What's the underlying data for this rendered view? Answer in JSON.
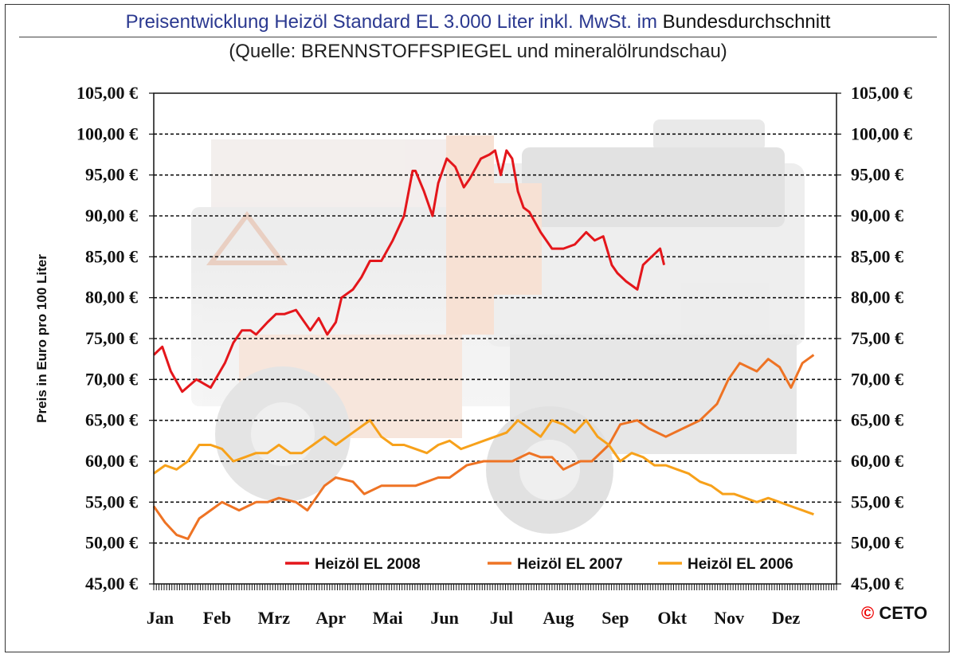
{
  "header": {
    "title_part1": "Preisentwicklung Heizöl Standard EL 3.000 Liter inkl. MwSt. im",
    "title_part2": "Bundesdurchschnitt",
    "subtitle": "(Quelle: BRENNSTOFFSPIEGEL und mineralölrundschau)"
  },
  "logo": {
    "symbol": "©",
    "text": "CETO"
  },
  "colors": {
    "2008": "#e4161b",
    "2007": "#ee7324",
    "2006": "#f7a11a",
    "title": "#2b3990"
  },
  "chart_data": {
    "type": "line",
    "title": "Preisentwicklung Heizöl Standard EL 3.000 Liter inkl. MwSt. im Bundesdurchschnitt",
    "subtitle": "(Quelle: BRENNSTOFFSPIEGEL und mineralölrundschau)",
    "ylabel": "Preis in Euro pro 100 Liter",
    "xlabel": "",
    "ylim": [
      45,
      105
    ],
    "yticks": [
      "45,00 €",
      "50,00 €",
      "55,00 €",
      "60,00 €",
      "65,00 €",
      "70,00 €",
      "75,00 €",
      "80,00 €",
      "85,00 €",
      "90,00 €",
      "95,00 €",
      "100,00 €",
      "105,00 €"
    ],
    "tick_values": [
      45,
      50,
      55,
      60,
      65,
      70,
      75,
      80,
      85,
      90,
      95,
      100,
      105
    ],
    "categories": [
      "Jan",
      "Feb",
      "Mrz",
      "Apr",
      "Mai",
      "Jun",
      "Jul",
      "Aug",
      "Sep",
      "Okt",
      "Nov",
      "Dez"
    ],
    "x_unit": "month (1 = start of Jan, 13 = end of Dez)",
    "grid": true,
    "legend_position": "bottom",
    "series": [
      {
        "name": "Heizöl EL 2008",
        "x": [
          1.0,
          1.15,
          1.3,
          1.5,
          1.75,
          2.0,
          2.25,
          2.4,
          2.55,
          2.7,
          2.8,
          3.0,
          3.15,
          3.3,
          3.5,
          3.75,
          3.9,
          4.05,
          4.2,
          4.3,
          4.5,
          4.65,
          4.8,
          5.0,
          5.2,
          5.4,
          5.55,
          5.6,
          5.75,
          5.9,
          6.0,
          6.15,
          6.3,
          6.45,
          6.55,
          6.75,
          6.9,
          7.0,
          7.1,
          7.2,
          7.3,
          7.4,
          7.5,
          7.6,
          7.8,
          8.0,
          8.2,
          8.4,
          8.6,
          8.75,
          8.9,
          9.05,
          9.15,
          9.3,
          9.5,
          9.6,
          9.75,
          9.9,
          9.97
        ],
        "values": [
          73,
          74,
          71,
          68.5,
          70,
          69,
          72,
          74.5,
          76,
          76,
          75.5,
          77,
          78,
          78,
          78.5,
          76,
          77.5,
          75.5,
          77,
          80,
          81,
          82.5,
          84.5,
          84.5,
          87,
          90,
          95.5,
          95.5,
          93,
          90,
          94,
          97,
          96,
          93.5,
          94.5,
          97,
          97.5,
          98,
          95,
          98,
          97,
          93,
          91,
          90.5,
          88,
          86,
          86,
          86.5,
          88,
          87,
          87.5,
          84,
          83,
          82,
          81,
          84,
          85,
          86,
          84
        ]
      },
      {
        "name": "Heizöl EL 2007",
        "x": [
          1.0,
          1.2,
          1.4,
          1.6,
          1.8,
          2.0,
          2.2,
          2.5,
          2.8,
          3.0,
          3.2,
          3.5,
          3.7,
          4.0,
          4.2,
          4.5,
          4.7,
          5.0,
          5.3,
          5.6,
          5.8,
          6.0,
          6.2,
          6.5,
          6.8,
          7.0,
          7.3,
          7.6,
          7.8,
          8.0,
          8.2,
          8.5,
          8.7,
          9.0,
          9.2,
          9.5,
          9.7,
          10.0,
          10.3,
          10.6,
          10.9,
          11.1,
          11.3,
          11.6,
          11.8,
          12.0,
          12.2,
          12.4,
          12.6
        ],
        "values": [
          54.5,
          52.5,
          51,
          50.5,
          53,
          54,
          55,
          54,
          55,
          55,
          55.5,
          55,
          54,
          57,
          58,
          57.5,
          56,
          57,
          57,
          57,
          57.5,
          58,
          58,
          59.5,
          60,
          60,
          60,
          61,
          60.5,
          60.5,
          59,
          60,
          60,
          62,
          64.5,
          65,
          64,
          63,
          64,
          65,
          67,
          70,
          72,
          71,
          72.5,
          71.5,
          69,
          72,
          73
        ]
      },
      {
        "name": "Heizöl EL 2006",
        "x": [
          1.0,
          1.2,
          1.4,
          1.6,
          1.8,
          2.0,
          2.2,
          2.4,
          2.6,
          2.8,
          3.0,
          3.2,
          3.4,
          3.6,
          3.8,
          4.0,
          4.2,
          4.4,
          4.6,
          4.8,
          5.0,
          5.2,
          5.4,
          5.6,
          5.8,
          6.0,
          6.2,
          6.4,
          6.6,
          6.8,
          7.0,
          7.2,
          7.4,
          7.6,
          7.8,
          8.0,
          8.2,
          8.4,
          8.6,
          8.8,
          9.0,
          9.2,
          9.4,
          9.6,
          9.8,
          10.0,
          10.2,
          10.4,
          10.6,
          10.8,
          11.0,
          11.2,
          11.4,
          11.6,
          11.8,
          12.0,
          12.2,
          12.4,
          12.6
        ],
        "values": [
          58.5,
          59.5,
          59,
          60,
          62,
          62,
          61.5,
          60,
          60.5,
          61,
          61,
          62,
          61,
          61,
          62,
          63,
          62,
          63,
          64,
          65,
          63,
          62,
          62,
          61.5,
          61,
          62,
          62.5,
          61.5,
          62,
          62.5,
          63,
          63.5,
          65,
          64,
          63,
          65,
          64.5,
          63.5,
          65,
          63,
          62,
          60,
          61,
          60.5,
          59.5,
          59.5,
          59,
          58.5,
          57.5,
          57,
          56,
          56,
          55.5,
          55,
          55.5,
          55,
          54.5,
          54,
          53.5
        ]
      }
    ]
  }
}
